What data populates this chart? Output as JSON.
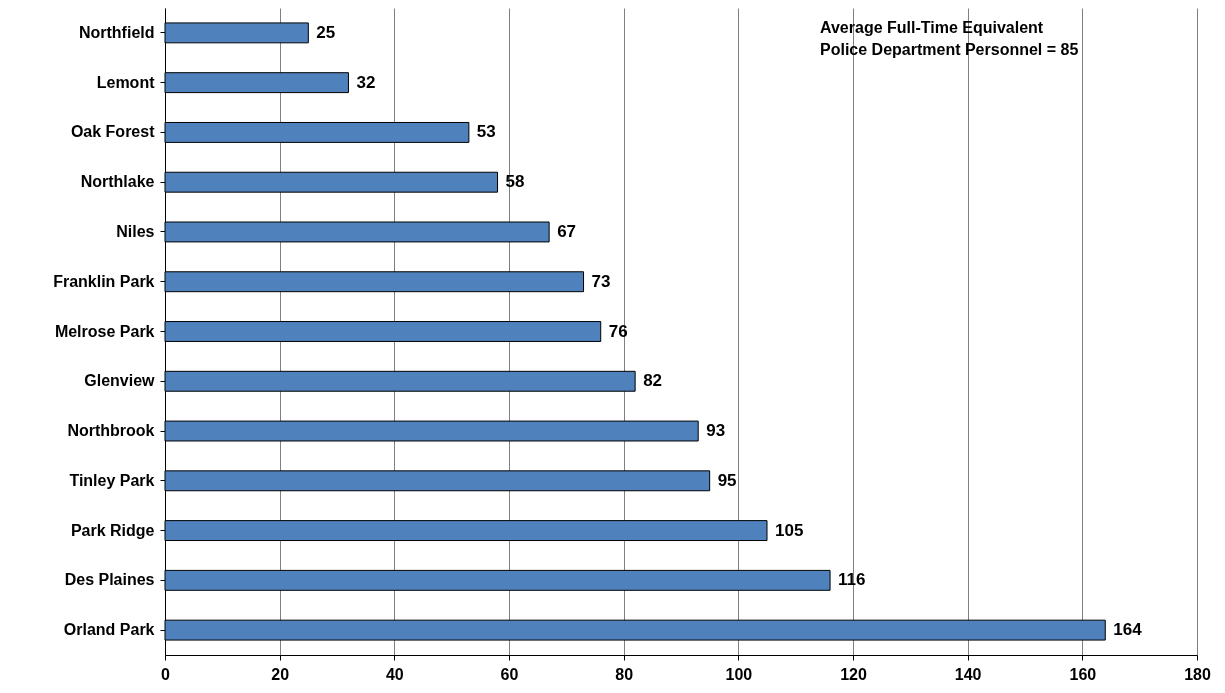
{
  "chart_data": {
    "type": "bar",
    "orientation": "horizontal",
    "categories": [
      "Northfield",
      "Lemont",
      "Oak Forest",
      "Northlake",
      "Niles",
      "Franklin Park",
      "Melrose Park",
      "Glenview",
      "Northbrook",
      "Tinley Park",
      "Park Ridge",
      "Des Plaines",
      "Orland Park"
    ],
    "values": [
      25,
      32,
      53,
      58,
      67,
      73,
      76,
      82,
      93,
      95,
      105,
      116,
      164
    ],
    "color": "#4f81bd",
    "xlim": [
      0,
      180
    ],
    "xticks": [
      0,
      20,
      40,
      60,
      80,
      100,
      120,
      140,
      160,
      180
    ],
    "grid": "x",
    "data_labels": true,
    "annotations": [
      "Average Full-Time Equivalent\nPolice Department Personnel = 85"
    ]
  }
}
